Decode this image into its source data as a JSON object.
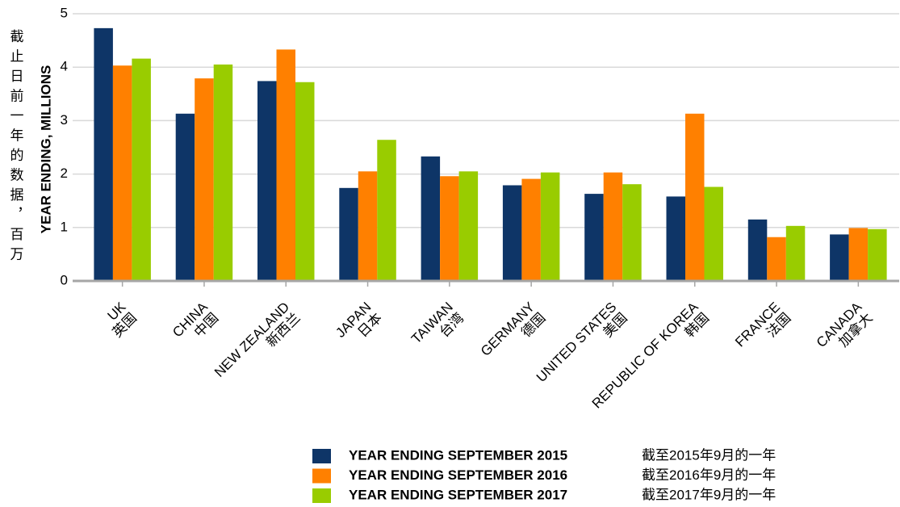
{
  "chart_data": {
    "type": "bar",
    "y_label": "YEAR ENDING, MILLIONS",
    "y_label_zh": "截止日前一年的数据，百万",
    "categories": [
      [
        "UK",
        "英国"
      ],
      [
        "CHINA",
        "中国"
      ],
      [
        "NEW ZEALAND",
        "新西兰"
      ],
      [
        "JAPAN",
        "日本"
      ],
      [
        "TAIWAN",
        "台湾"
      ],
      [
        "GERMANY",
        "德国"
      ],
      [
        "UNITED STATES",
        "美国"
      ],
      [
        "REPUBLIC OF KOREA",
        "韩国"
      ],
      [
        "FRANCE",
        "法国"
      ],
      [
        "CANADA",
        "加拿大"
      ]
    ],
    "series": [
      {
        "name": "YEAR ENDING SEPTEMBER 2015",
        "name_zh": "截至2015年9月的一年",
        "color": "#0e3567",
        "values": [
          4.73,
          3.13,
          3.74,
          1.74,
          2.33,
          1.79,
          1.63,
          1.58,
          1.15,
          0.87
        ]
      },
      {
        "name": "YEAR ENDING SEPTEMBER 2016",
        "name_zh": "截至2016年9月的一年",
        "color": "#ff8000",
        "values": [
          4.03,
          3.79,
          4.33,
          2.05,
          1.96,
          1.91,
          2.03,
          3.13,
          0.82,
          0.99
        ]
      },
      {
        "name": "YEAR ENDING SEPTEMBER 2017",
        "name_zh": "截至2017年9月的一年",
        "color": "#99cc00",
        "values": [
          4.16,
          4.05,
          3.72,
          2.64,
          2.05,
          2.03,
          1.81,
          1.76,
          1.03,
          0.97
        ]
      }
    ],
    "ylim": [
      0,
      5
    ],
    "yticks": [
      0,
      1,
      2,
      3,
      4,
      5
    ],
    "grid": true,
    "legend": "bottom"
  }
}
